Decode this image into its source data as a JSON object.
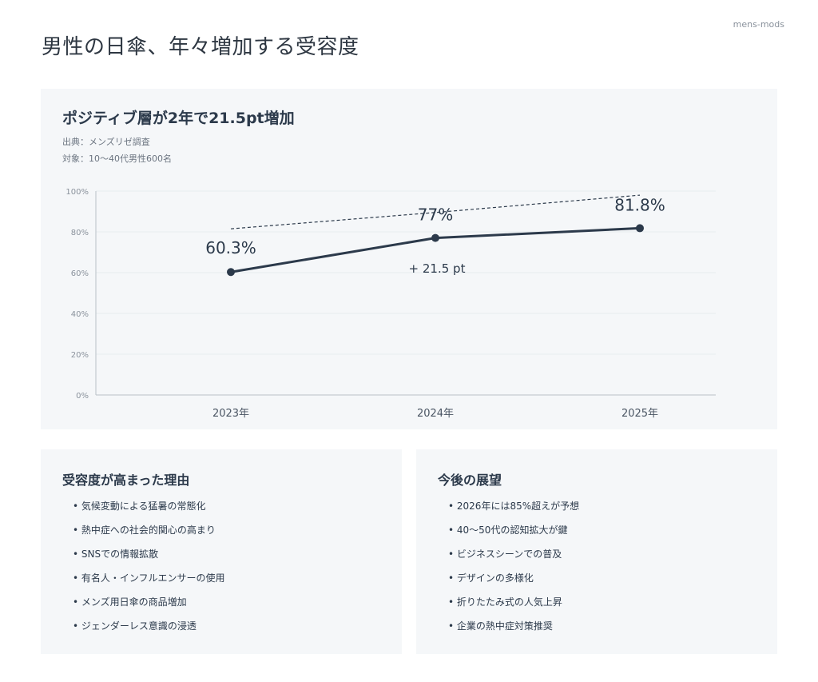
{
  "brand": "mens-mods",
  "page_title": "男性の日傘、年々増加する受容度",
  "chart_card": {
    "title": "ポジティブ層が2年で21.5pt増加",
    "source": "出典：メンズリゼ調査",
    "target": "対象：10〜40代男性600名",
    "delta_label": "+ 21.5 pt"
  },
  "chart_data": {
    "type": "line",
    "categories": [
      "2023年",
      "2024年",
      "2025年"
    ],
    "series": [
      {
        "values": [
          60.3,
          77,
          81.8
        ],
        "labels": [
          "60.3%",
          "77%",
          "81.8%"
        ],
        "color": "#2c3a4b"
      }
    ],
    "trendline": {
      "values": [
        81.5,
        89.5,
        98
      ],
      "style": "dashed"
    },
    "ylim": [
      0,
      100
    ],
    "yticks": [
      0,
      20,
      40,
      60,
      80,
      100
    ],
    "ytick_labels": [
      "0%",
      "20%",
      "40%",
      "60%",
      "80%",
      "100%"
    ],
    "grid": true,
    "annotation": "+ 21.5 pt"
  },
  "reasons": {
    "title": "受容度が高まった理由",
    "items": [
      "気候変動による猛暑の常態化",
      "熱中症への社会的関心の高まり",
      "SNSでの情報拡散",
      "有名人・インフルエンサーの使用",
      "メンズ用日傘の商品増加",
      "ジェンダーレス意識の浸透"
    ]
  },
  "outlook": {
    "title": "今後の展望",
    "items": [
      "2026年には85%超えが予想",
      "40〜50代の認知拡大が鍵",
      "ビジネスシーンでの普及",
      "デザインの多様化",
      "折りたたみ式の人気上昇",
      "企業の熱中症対策推奨"
    ]
  }
}
